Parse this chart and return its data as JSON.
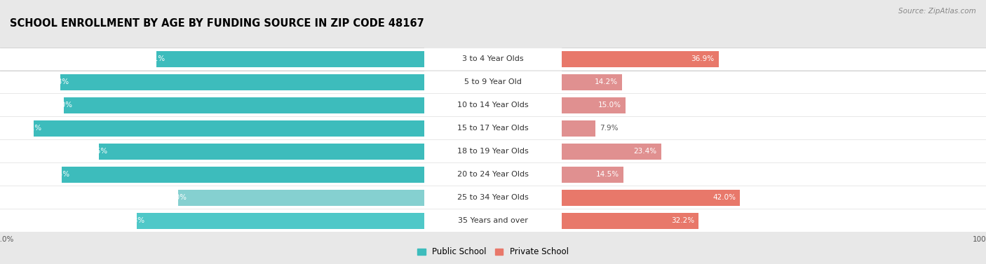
{
  "title": "SCHOOL ENROLLMENT BY AGE BY FUNDING SOURCE IN ZIP CODE 48167",
  "source": "Source: ZipAtlas.com",
  "categories": [
    "3 to 4 Year Olds",
    "5 to 9 Year Old",
    "10 to 14 Year Olds",
    "15 to 17 Year Olds",
    "18 to 19 Year Olds",
    "20 to 24 Year Olds",
    "25 to 34 Year Olds",
    "35 Years and over"
  ],
  "public_values": [
    63.1,
    85.8,
    85.0,
    92.1,
    76.6,
    85.5,
    58.0,
    67.8
  ],
  "private_values": [
    36.9,
    14.2,
    15.0,
    7.9,
    23.4,
    14.5,
    42.0,
    32.2
  ],
  "public_colors": [
    "#3dbcbc",
    "#3dbcbc",
    "#3dbcbc",
    "#3dbcbc",
    "#3dbcbc",
    "#3dbcbc",
    "#85d0d0",
    "#4fc8c8"
  ],
  "private_colors": [
    "#e8786a",
    "#e09090",
    "#e09090",
    "#e09090",
    "#e09090",
    "#e09090",
    "#e8786a",
    "#e8786a"
  ],
  "background_color": "#e8e8e8",
  "row_bg_even": "#f5f5f5",
  "row_bg_odd": "#ebebeb",
  "title_fontsize": 10.5,
  "label_fontsize": 8,
  "bar_value_fontsize": 7.5,
  "source_fontsize": 7.5,
  "legend_fontsize": 8.5,
  "axis_label_fontsize": 7.5,
  "bar_height": 0.7
}
